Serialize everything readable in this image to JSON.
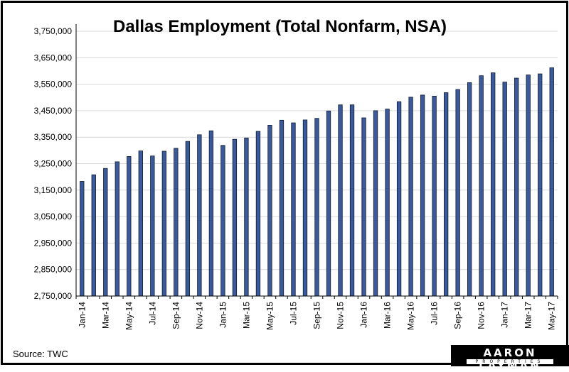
{
  "title": "Dallas Employment (Total Nonfarm, NSA)",
  "source": "Source: TWC",
  "logo": {
    "top": "AARON LAYMAN",
    "bottom": "PROPERTIES"
  },
  "colors": {
    "bar": "#3c5a99",
    "bar_edge": "#0d1a33",
    "grid": "#d9d9d9",
    "axis": "#000000"
  },
  "chart_data": {
    "type": "bar",
    "title": "Dallas Employment (Total Nonfarm, NSA)",
    "xlabel": "",
    "ylabel": "",
    "ylim": [
      2750000,
      3750000
    ],
    "y_ticks": [
      2750000,
      2850000,
      2950000,
      3050000,
      3150000,
      3250000,
      3350000,
      3450000,
      3550000,
      3650000,
      3750000
    ],
    "y_tick_labels": [
      "2,750,000",
      "2,850,000",
      "2,950,000",
      "3,050,000",
      "3,150,000",
      "3,250,000",
      "3,350,000",
      "3,450,000",
      "3,550,000",
      "3,650,000",
      "3,750,000"
    ],
    "grid": true,
    "categories": [
      "Jan-14",
      "Feb-14",
      "Mar-14",
      "Apr-14",
      "May-14",
      "Jun-14",
      "Jul-14",
      "Aug-14",
      "Sep-14",
      "Oct-14",
      "Nov-14",
      "Dec-14",
      "Jan-15",
      "Feb-15",
      "Mar-15",
      "Apr-15",
      "May-15",
      "Jun-15",
      "Jul-15",
      "Aug-15",
      "Sep-15",
      "Oct-15",
      "Nov-15",
      "Dec-15",
      "Jan-16",
      "Feb-16",
      "Mar-16",
      "Apr-16",
      "May-16",
      "Jun-16",
      "Jul-16",
      "Aug-16",
      "Sep-16",
      "Oct-16",
      "Nov-16",
      "Dec-16",
      "Jan-17",
      "Feb-17",
      "Mar-17",
      "Apr-17",
      "May-17"
    ],
    "x_tick_labels": [
      "Jan-14",
      "Mar-14",
      "May-14",
      "Jul-14",
      "Sep-14",
      "Nov-14",
      "Jan-15",
      "Mar-15",
      "May-15",
      "Jul-15",
      "Sep-15",
      "Nov-15",
      "Jan-16",
      "Mar-16",
      "May-16",
      "Jul-16",
      "Sep-16",
      "Nov-16",
      "Jan-17",
      "Mar-17",
      "May-17"
    ],
    "values": [
      3183000,
      3208000,
      3232000,
      3257000,
      3277000,
      3298000,
      3279000,
      3297000,
      3308000,
      3334000,
      3359000,
      3374000,
      3319000,
      3342000,
      3347000,
      3372000,
      3395000,
      3414000,
      3404000,
      3415000,
      3421000,
      3449000,
      3472000,
      3472000,
      3423000,
      3450000,
      3456000,
      3484000,
      3501000,
      3509000,
      3505000,
      3518000,
      3530000,
      3556000,
      3582000,
      3593000,
      3558000,
      3573000,
      3585000,
      3589000,
      3612000
    ]
  }
}
